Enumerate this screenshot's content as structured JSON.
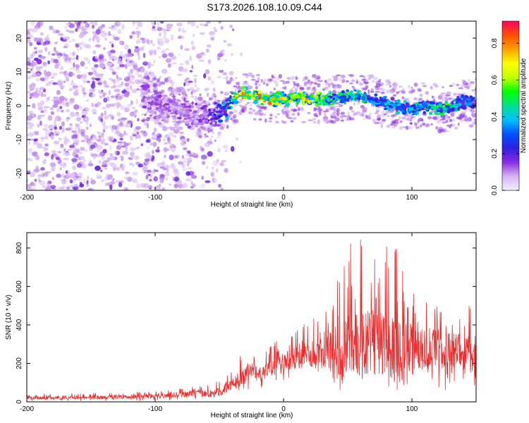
{
  "title": "S173.2026.108.10.09.C44",
  "colors": {
    "snr_line": "#e83030",
    "frame": "#000000",
    "background": "#ffffff",
    "colormap": [
      "#f0f0ff",
      "#d6b4f0",
      "#8a2be2",
      "#3020e0",
      "#0050ff",
      "#00c0ff",
      "#00e090",
      "#00ff00",
      "#c0ff00",
      "#ffff00",
      "#ffa000",
      "#ff5000",
      "#ff0060"
    ]
  },
  "chart_data": [
    {
      "type": "heatmap",
      "title": "",
      "xlabel": "Height of straight line (km)",
      "ylabel": "Frequency (Hz)",
      "xlim": [
        -200,
        150
      ],
      "ylim": [
        -25,
        25
      ],
      "xticks": [
        "-200",
        "-100",
        "0",
        "100"
      ],
      "yticks": [
        "-20",
        "-10",
        "0",
        "10",
        "20"
      ],
      "grid": false,
      "colorbar": {
        "label": "Normalized spectral amplitude",
        "range": [
          0,
          0.92
        ],
        "ticks": [
          "0.0",
          "0.2",
          "0.4",
          "0.6",
          "0.8"
        ]
      },
      "description_ridge": {
        "x": [
          -200,
          -150,
          -110,
          -90,
          -70,
          -55,
          -45,
          -38,
          -33,
          -25,
          -10,
          0,
          20,
          40,
          60,
          75,
          90,
          100,
          110,
          125,
          140,
          150
        ],
        "y": [
          0,
          0,
          2,
          0,
          -3,
          -4,
          -1,
          2,
          4,
          3,
          2,
          2,
          2,
          2,
          3,
          1,
          0,
          -1,
          0,
          -1,
          1,
          1
        ],
        "peak_amplitude": [
          0.05,
          0.1,
          0.15,
          0.15,
          0.15,
          0.25,
          0.4,
          0.7,
          0.85,
          0.9,
          0.85,
          0.75,
          0.8,
          0.55,
          0.6,
          0.4,
          0.45,
          0.5,
          0.45,
          0.6,
          0.4,
          0.35
        ]
      }
    },
    {
      "type": "line",
      "title": "",
      "xlabel": "Height of straight line (km)",
      "ylabel": "SNR (10 * v/v)",
      "xlim": [
        -200,
        150
      ],
      "ylim": [
        0,
        880
      ],
      "xticks": [
        "-200",
        "-100",
        "0",
        "100"
      ],
      "yticks": [
        "0",
        "200",
        "400",
        "600",
        "800"
      ],
      "grid": false,
      "series": [
        {
          "x": [
            -200,
            -150,
            -100,
            -75,
            -50,
            -40,
            -35,
            -25,
            -15,
            -5,
            0,
            10,
            20,
            30,
            40,
            55,
            70,
            80,
            90,
            100,
            110,
            120,
            130,
            140,
            150
          ],
          "envelope_high": [
            40,
            45,
            60,
            80,
            110,
            180,
            250,
            230,
            270,
            320,
            330,
            380,
            430,
            500,
            600,
            880,
            860,
            830,
            850,
            630,
            550,
            520,
            470,
            420,
            680
          ],
          "envelope_low": [
            5,
            5,
            5,
            10,
            20,
            40,
            60,
            60,
            80,
            100,
            110,
            120,
            120,
            80,
            60,
            60,
            60,
            60,
            40,
            60,
            60,
            50,
            40,
            60,
            50
          ],
          "typical": [
            20,
            22,
            30,
            40,
            50,
            90,
            120,
            150,
            150,
            190,
            210,
            230,
            250,
            260,
            270,
            290,
            300,
            290,
            280,
            280,
            270,
            280,
            270,
            270,
            250
          ]
        }
      ]
    }
  ]
}
